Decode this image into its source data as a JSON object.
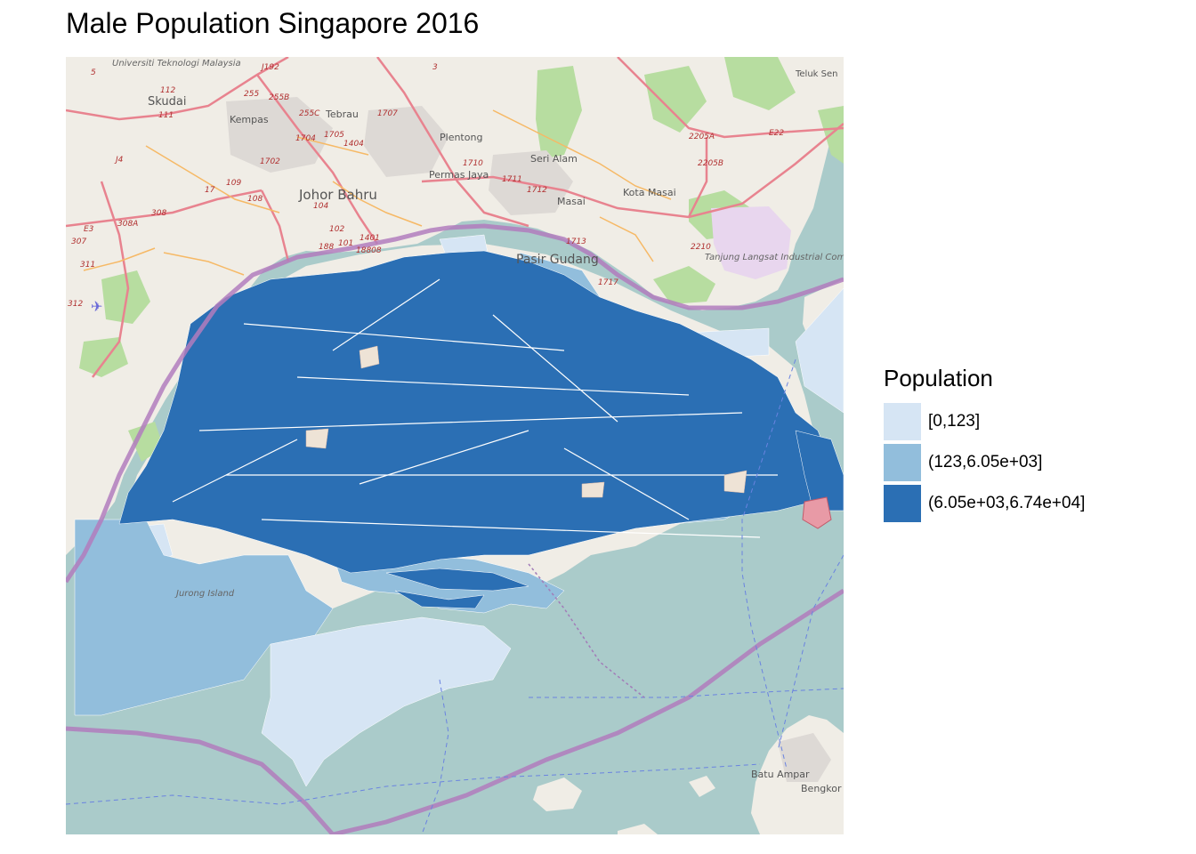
{
  "title": "Male Population Singapore 2016",
  "legend": {
    "title": "Population",
    "items": [
      {
        "label": "[0,123]",
        "color": "#d6e5f4"
      },
      {
        "label": "(123,6.05e+03]",
        "color": "#92bedc"
      },
      {
        "label": "(6.05e+03,6.74e+04]",
        "color": "#2b6fb4"
      }
    ]
  },
  "basemap": {
    "colors": {
      "land": "#f0ede6",
      "sea": "#aacbca",
      "border": "#b27dbd",
      "forest": "#b7dda0",
      "industrial": "#e8d6ee",
      "road_major": "#e8838f",
      "road_minor": "#f6b966"
    },
    "places": [
      "Universiti Teknologi Malaysia",
      "Skudai",
      "Kempas",
      "Tebrau",
      "Plentong",
      "Seri Alam",
      "Permas Jaya",
      "Masai",
      "Kota Masai",
      "Johor Bahru",
      "Pasir Gudang",
      "Tanjung Langsat Industrial Complex",
      "Teluk Sen",
      "Jurong Island",
      "Batu Ampar",
      "Bengkor"
    ],
    "road_labels": [
      "J192",
      "E22",
      "E3",
      "J4",
      "2205A",
      "2205B",
      "2210",
      "1717",
      "1710",
      "1711",
      "1712",
      "1713",
      "1707",
      "1704",
      "1705",
      "1404",
      "1702",
      "1401",
      "188",
      "18808",
      "308",
      "308A",
      "307",
      "311",
      "312",
      "255",
      "255B",
      "255C",
      "101",
      "102",
      "104",
      "108",
      "109",
      "111",
      "112",
      "3",
      "5",
      "17"
    ]
  }
}
